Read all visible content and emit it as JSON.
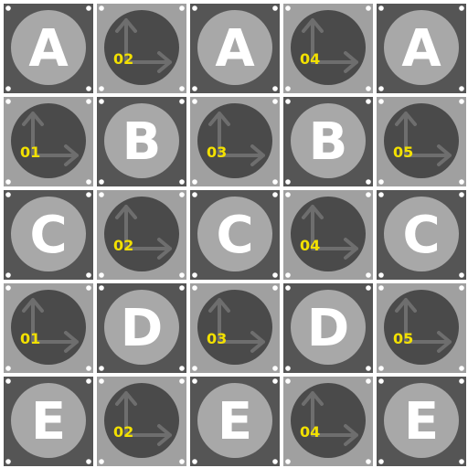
{
  "colors": {
    "dark_tile": "#555555",
    "light_tile": "#a0a0a0",
    "dark_disc": "#4a4a4a",
    "light_disc": "#a8a8a8",
    "letter": "#ffffff",
    "number": "#f2e000",
    "arrow": "#6e6e6e",
    "corner_dot": "#ffffff"
  },
  "rows": [
    [
      {
        "kind": "letter",
        "text": "A"
      },
      {
        "kind": "number",
        "text": "02"
      },
      {
        "kind": "letter",
        "text": "A"
      },
      {
        "kind": "number",
        "text": "04"
      },
      {
        "kind": "letter",
        "text": "A"
      }
    ],
    [
      {
        "kind": "number",
        "text": "01"
      },
      {
        "kind": "letter",
        "text": "B"
      },
      {
        "kind": "number",
        "text": "03"
      },
      {
        "kind": "letter",
        "text": "B"
      },
      {
        "kind": "number",
        "text": "05"
      }
    ],
    [
      {
        "kind": "letter",
        "text": "C"
      },
      {
        "kind": "number",
        "text": "02"
      },
      {
        "kind": "letter",
        "text": "C"
      },
      {
        "kind": "number",
        "text": "04"
      },
      {
        "kind": "letter",
        "text": "C"
      }
    ],
    [
      {
        "kind": "number",
        "text": "01"
      },
      {
        "kind": "letter",
        "text": "D"
      },
      {
        "kind": "number",
        "text": "03"
      },
      {
        "kind": "letter",
        "text": "D"
      },
      {
        "kind": "number",
        "text": "05"
      }
    ],
    [
      {
        "kind": "letter",
        "text": "E"
      },
      {
        "kind": "number",
        "text": "02"
      },
      {
        "kind": "letter",
        "text": "E"
      },
      {
        "kind": "number",
        "text": "04"
      },
      {
        "kind": "letter",
        "text": "E"
      }
    ]
  ]
}
